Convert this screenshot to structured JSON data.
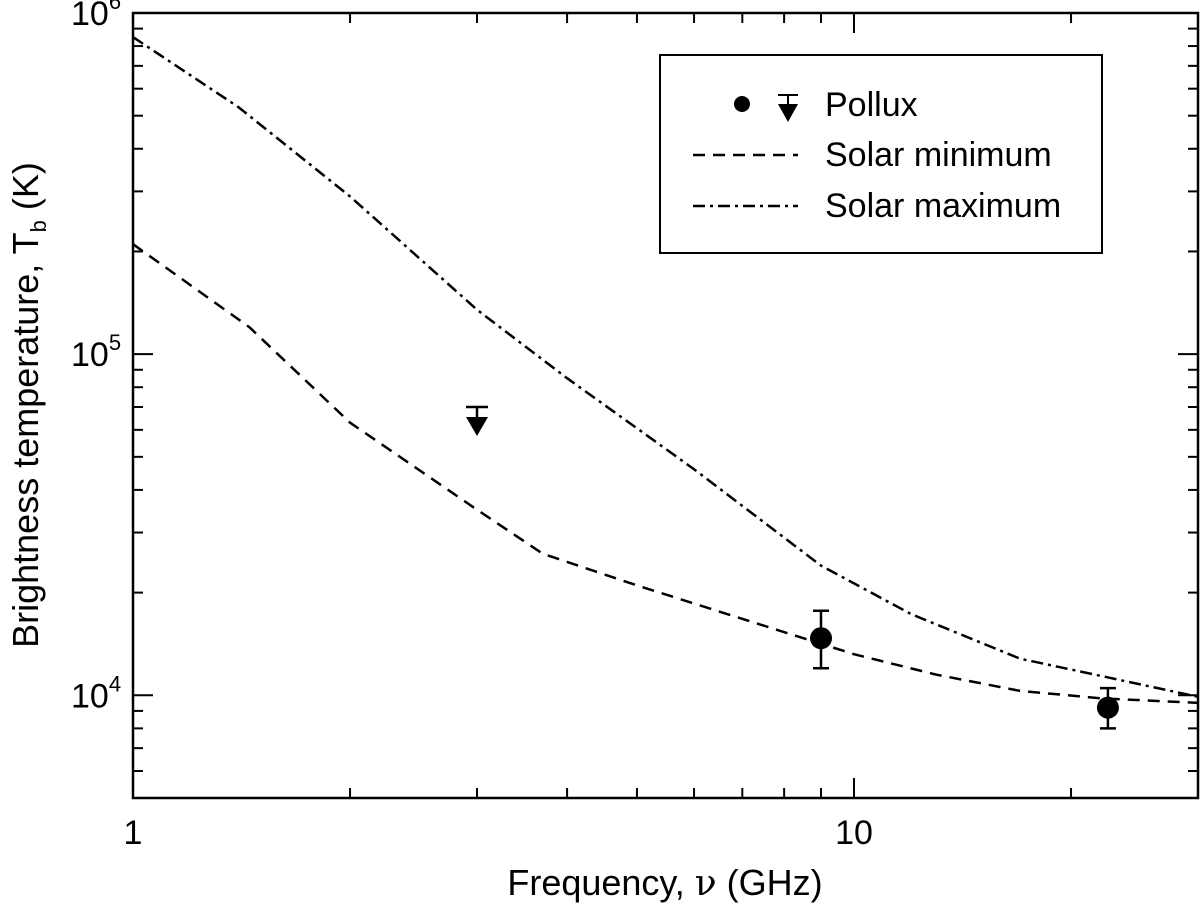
{
  "chart_data": {
    "type": "line",
    "x_scale": "log",
    "y_scale": "log",
    "xlim": [
      1,
      30
    ],
    "ylim": [
      5000,
      1000000
    ],
    "xlabel_main": "Frequency, ",
    "xlabel_symbol": "ν",
    "xlabel_unit": " (GHz)",
    "ylabel_main": "Brightness temperature, T",
    "ylabel_sub": "b",
    "ylabel_unit": " (K)",
    "x_ticks": [
      {
        "value": 1,
        "label": "1"
      },
      {
        "value": 10,
        "label": "10"
      }
    ],
    "y_ticks": [
      {
        "value": 10000,
        "base": "10",
        "exp": "4"
      },
      {
        "value": 100000,
        "base": "10",
        "exp": "5"
      },
      {
        "value": 1000000,
        "base": "10",
        "exp": "6"
      }
    ],
    "legend_position": "top-right",
    "legend": [
      {
        "label": "Pollux",
        "style": "markers"
      },
      {
        "label": "Solar minimum",
        "style": "dashed"
      },
      {
        "label": "Solar maximum",
        "style": "dashdot"
      }
    ],
    "series": [
      {
        "name": "Solar minimum",
        "style": "dashed",
        "x": [
          1.0,
          1.45,
          2.0,
          3.0,
          3.7,
          5.0,
          7.5,
          10.0,
          13.0,
          17.0,
          22.0,
          30.0
        ],
        "y": [
          210000,
          120000,
          63000,
          35000,
          26000,
          21000,
          16000,
          13200,
          11500,
          10300,
          9800,
          9500
        ]
      },
      {
        "name": "Solar maximum",
        "style": "dashdot",
        "x": [
          1.0,
          1.4,
          2.0,
          3.0,
          4.0,
          6.0,
          9.0,
          12.0,
          17.0,
          22.0,
          30.0
        ],
        "y": [
          850000,
          530000,
          290000,
          135000,
          85000,
          46000,
          24000,
          17300,
          12800,
          11400,
          9900
        ]
      }
    ],
    "points": [
      {
        "name": "Pollux",
        "marker": "circle",
        "x": 9.0,
        "y": 14700,
        "err_low": 12000,
        "err_high": 17700
      },
      {
        "name": "Pollux",
        "marker": "circle",
        "x": 22.5,
        "y": 9200,
        "err_low": 8000,
        "err_high": 10500
      },
      {
        "name": "Pollux",
        "marker": "upper-limit",
        "x": 3.0,
        "y": 70000
      }
    ]
  }
}
